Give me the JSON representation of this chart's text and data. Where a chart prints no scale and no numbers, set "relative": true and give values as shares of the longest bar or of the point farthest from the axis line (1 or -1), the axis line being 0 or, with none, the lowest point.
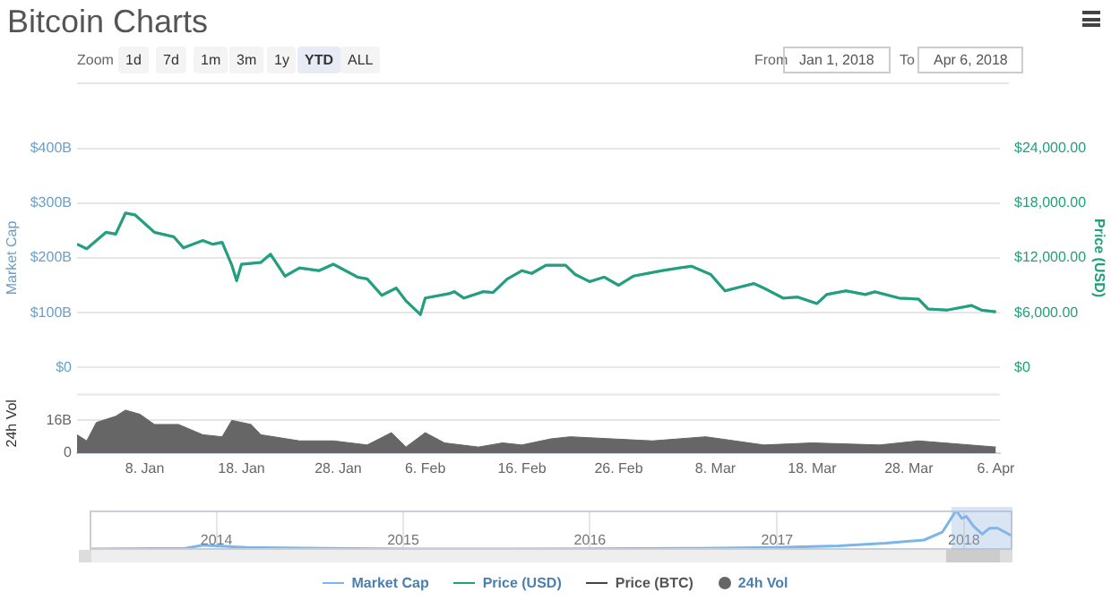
{
  "chart_data": [
    {
      "type": "line",
      "title": "Bitcoin Charts",
      "ylabel": "Market Cap",
      "y2label": "Price (USD)",
      "legend": "bottom",
      "grid": "y",
      "tick_labels": "y",
      "marker": "none",
      "line_style": "solid",
      "annotations": [
        "Zoom",
        "1d",
        "7d",
        "1m",
        "3m",
        "1y",
        "YTD",
        "ALL",
        "From",
        "Jan 1, 2018",
        "To",
        "Apr 6, 2018"
      ],
      "x": [
        "2018-01-01",
        "2018-01-02",
        "2018-01-04",
        "2018-01-05",
        "2018-01-06",
        "2018-01-07",
        "2018-01-09",
        "2018-01-11",
        "2018-01-12",
        "2018-01-14",
        "2018-01-15",
        "2018-01-16",
        "2018-01-17",
        "2018-01-17T12:00",
        "2018-01-18",
        "2018-01-20",
        "2018-01-21",
        "2018-01-22T12:00",
        "2018-01-24",
        "2018-01-26",
        "2018-01-27T12:00",
        "2018-01-30",
        "2018-01-31",
        "2018-02-01T12:00",
        "2018-02-03",
        "2018-02-04",
        "2018-02-05T12:00",
        "2018-02-06",
        "2018-02-08T12:00",
        "2018-02-09",
        "2018-02-10",
        "2018-02-12",
        "2018-02-13",
        "2018-02-14T12:00",
        "2018-02-16",
        "2018-02-17",
        "2018-02-18T12:00",
        "2018-02-20T12:00",
        "2018-02-21T12:00",
        "2018-02-23",
        "2018-02-24T12:00",
        "2018-02-26",
        "2018-02-27T12:00",
        "2018-03-01",
        "2018-03-02T12:00",
        "2018-03-05T12:00",
        "2018-03-07T12:00",
        "2018-03-09",
        "2018-03-10T12:00",
        "2018-03-12",
        "2018-03-13",
        "2018-03-15",
        "2018-03-16T12:00",
        "2018-03-18T12:00",
        "2018-03-19T12:00",
        "2018-03-21T12:00",
        "2018-03-23T12:00",
        "2018-03-24T12:00",
        "2018-03-27",
        "2018-03-29",
        "2018-03-30",
        "2018-04-01",
        "2018-04-03T12:00",
        "2018-04-04T12:00",
        "2018-04-06"
      ],
      "series": [
        {
          "name": "Market Cap",
          "color": "#7cb5ec",
          "values": [
            225,
            217,
            247,
            244,
            282,
            279,
            247,
            239,
            219,
            232,
            225,
            229,
            187,
            159,
            189,
            192,
            207,
            167,
            182,
            177,
            189,
            165,
            162,
            132,
            145,
            122,
            97,
            127,
            135,
            139,
            127,
            139,
            137,
            162,
            177,
            172,
            187,
            187,
            170,
            157,
            165,
            150,
            167,
            172,
            177,
            185,
            170,
            140,
            147,
            153,
            145,
            127,
            129,
            117,
            133,
            140,
            133,
            138,
            127,
            125,
            107,
            105,
            113,
            105,
            102
          ]
        },
        {
          "name": "Price (USD)",
          "color": "#22a07a",
          "axis": "y2",
          "values": [
            13500,
            13000,
            14800,
            14600,
            16900,
            16700,
            14800,
            14300,
            13100,
            13900,
            13500,
            13700,
            11200,
            9500,
            11300,
            11500,
            12400,
            10000,
            10900,
            10600,
            11300,
            9900,
            9700,
            7900,
            8700,
            7300,
            5800,
            7600,
            8100,
            8300,
            7600,
            8300,
            8200,
            9700,
            10600,
            10300,
            11200,
            11200,
            10200,
            9400,
            9900,
            9000,
            10000,
            10300,
            10600,
            11100,
            10200,
            8400,
            8800,
            9200,
            8700,
            7600,
            7700,
            7000,
            8000,
            8400,
            8000,
            8300,
            7600,
            7500,
            6400,
            6300,
            6800,
            6300,
            6100
          ]
        },
        {
          "name": "Price (BTC)",
          "color": "#444444",
          "values": [
            null,
            null,
            null,
            null,
            null,
            null,
            null,
            null,
            null,
            null,
            null,
            null,
            null,
            null,
            null,
            null,
            null,
            null,
            null,
            null,
            null,
            null,
            null,
            null,
            null,
            null,
            null,
            null,
            null,
            null,
            null,
            null,
            null,
            null,
            null,
            null,
            null,
            null,
            null,
            null,
            null,
            null,
            null,
            null,
            null,
            null,
            null,
            null,
            null,
            null,
            null,
            null,
            null,
            null,
            null,
            null,
            null,
            null,
            null,
            null,
            null,
            null,
            null,
            null,
            null
          ]
        }
      ],
      "xlim": [
        "2018-01-01",
        "2018-04-06T10:00"
      ],
      "ylim": [
        0,
        400
      ],
      "yticks": [
        {
          "value": 0,
          "label": "$0"
        },
        {
          "value": 100,
          "label": "$100B"
        },
        {
          "value": 200,
          "label": "$200B"
        },
        {
          "value": 300,
          "label": "$300B"
        },
        {
          "value": 400,
          "label": "$400B"
        }
      ],
      "y2lim": [
        0,
        24000
      ],
      "y2ticks": [
        {
          "value": 0,
          "label": "$0"
        },
        {
          "value": 6000,
          "label": "$6,000.00"
        },
        {
          "value": 12000,
          "label": "$12,000.00"
        },
        {
          "value": 18000,
          "label": "$18,000.00"
        },
        {
          "value": 24000,
          "label": "$24,000.00"
        }
      ]
    },
    {
      "type": "area",
      "ylabel": "24h Vol",
      "legend": "bottom",
      "grid": "y",
      "x": [
        "2018-01-01",
        "2018-01-02",
        "2018-01-03",
        "2018-01-05",
        "2018-01-06",
        "2018-01-07T12:00",
        "2018-01-09",
        "2018-01-11T12:00",
        "2018-01-14",
        "2018-01-16",
        "2018-01-17",
        "2018-01-19",
        "2018-01-20",
        "2018-01-24",
        "2018-01-27T12:00",
        "2018-01-31",
        "2018-02-02T12:00",
        "2018-02-04",
        "2018-02-06",
        "2018-02-08",
        "2018-02-11T12:00",
        "2018-02-14",
        "2018-02-16",
        "2018-02-19",
        "2018-02-21",
        "2018-03-01T12:00",
        "2018-03-07",
        "2018-03-13",
        "2018-03-18",
        "2018-03-25",
        "2018-03-29",
        "2018-04-06"
      ],
      "series": [
        {
          "name": "24h Vol",
          "color": "#666666",
          "values": [
            9,
            6,
            15,
            18,
            21,
            19,
            14,
            14,
            9,
            8,
            16,
            14,
            9,
            6,
            6,
            4,
            10,
            3,
            10,
            5,
            3,
            5,
            4,
            7,
            8,
            6,
            8,
            4,
            5,
            4,
            6,
            3
          ]
        }
      ],
      "xlim": [
        "2018-01-01",
        "2018-04-06T10:00"
      ],
      "xticks": [
        {
          "value": "2018-01-08",
          "label": "8. Jan"
        },
        {
          "value": "2018-01-18",
          "label": "18. Jan"
        },
        {
          "value": "2018-01-28",
          "label": "28. Jan"
        },
        {
          "value": "2018-02-06",
          "label": "6. Feb"
        },
        {
          "value": "2018-02-16",
          "label": "16. Feb"
        },
        {
          "value": "2018-02-26",
          "label": "26. Feb"
        },
        {
          "value": "2018-03-08",
          "label": "8. Mar"
        },
        {
          "value": "2018-03-18",
          "label": "18. Mar"
        },
        {
          "value": "2018-03-28",
          "label": "28. Mar"
        },
        {
          "value": "2018-04-06",
          "label": "6. Apr"
        }
      ],
      "ylim": [
        0,
        29
      ],
      "yticks": [
        0,
        {
          "value": 16,
          "label": "16B"
        }
      ]
    },
    {
      "type": "line",
      "relative": true,
      "grid": "x",
      "x": [
        "2013-04-28",
        "2013-11-01",
        "2013-12-05",
        "2014-03-01",
        "2014-08-01",
        "2015-01-15",
        "2015-08-01",
        "2016-01-01",
        "2016-08-01",
        "2017-01-01",
        "2017-05-01",
        "2017-08-01",
        "2017-10-15",
        "2017-11-20",
        "2017-12-17",
        "2017-12-28",
        "2018-01-06",
        "2018-01-20",
        "2018-02-06",
        "2018-02-20",
        "2018-03-08",
        "2018-04-06"
      ],
      "series": [
        {
          "color": "#7cb5ec",
          "values": [
            0.02,
            0.04,
            0.12,
            0.06,
            0.04,
            0.02,
            0.02,
            0.03,
            0.04,
            0.06,
            0.1,
            0.17,
            0.25,
            0.45,
            1,
            0.8,
            0.85,
            0.6,
            0.4,
            0.55,
            0.55,
            0.35
          ]
        }
      ],
      "xlim": [
        "2013-04-28",
        "2018-04-06"
      ],
      "xticks": [
        {
          "value": "2014-01-01",
          "label": "2014"
        },
        {
          "value": "2015-01-01",
          "label": "2015"
        },
        {
          "value": "2016-01-01",
          "label": "2016"
        },
        {
          "value": "2017-01-01",
          "label": "2017"
        },
        {
          "value": "2018-01-01",
          "label": "2018"
        }
      ]
    }
  ]
}
